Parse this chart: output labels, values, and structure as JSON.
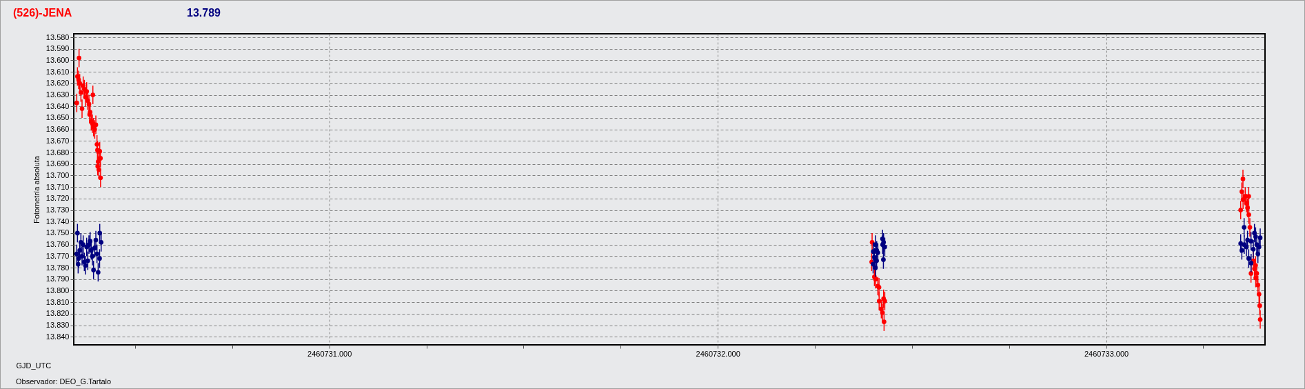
{
  "chart_data": {
    "type": "scatter",
    "title": "(526)-JENA",
    "subtitle": "13.789",
    "xlabel": "GJD_UTC",
    "ylabel": "Fotometría absoluta",
    "annotations": [
      "Observador: DEO_G.Tartalo"
    ],
    "xlim": [
      2460730.342,
      2460733.409
    ],
    "ylim": [
      13.847,
      13.577
    ],
    "xticks": [
      {
        "value": 2460730.5,
        "label": null
      },
      {
        "value": 2460730.75,
        "label": null
      },
      {
        "value": 2460731,
        "label": "2460731.000"
      },
      {
        "value": 2460731.25,
        "label": null
      },
      {
        "value": 2460731.5,
        "label": null
      },
      {
        "value": 2460731.75,
        "label": null
      },
      {
        "value": 2460732,
        "label": "2460732.000"
      },
      {
        "value": 2460732.25,
        "label": null
      },
      {
        "value": 2460732.5,
        "label": null
      },
      {
        "value": 2460732.75,
        "label": null
      },
      {
        "value": 2460733,
        "label": "2460733.000"
      },
      {
        "value": 2460733.25,
        "label": null
      }
    ],
    "yticks": [
      {
        "value": 13.58,
        "label": "13.580"
      },
      {
        "value": 13.59,
        "label": "13.590"
      },
      {
        "value": 13.6,
        "label": "13.600"
      },
      {
        "value": 13.61,
        "label": "13.610"
      },
      {
        "value": 13.62,
        "label": "13.620"
      },
      {
        "value": 13.63,
        "label": "13.630"
      },
      {
        "value": 13.64,
        "label": "13.640"
      },
      {
        "value": 13.65,
        "label": "13.650"
      },
      {
        "value": 13.66,
        "label": "13.660"
      },
      {
        "value": 13.67,
        "label": "13.670"
      },
      {
        "value": 13.68,
        "label": "13.680"
      },
      {
        "value": 13.69,
        "label": "13.690"
      },
      {
        "value": 13.7,
        "label": "13.700"
      },
      {
        "value": 13.71,
        "label": "13.710"
      },
      {
        "value": 13.72,
        "label": "13.720"
      },
      {
        "value": 13.73,
        "label": "13.730"
      },
      {
        "value": 13.74,
        "label": "13.740"
      },
      {
        "value": 13.75,
        "label": "13.750"
      },
      {
        "value": 13.76,
        "label": "13.760"
      },
      {
        "value": 13.77,
        "label": "13.770"
      },
      {
        "value": 13.78,
        "label": "13.780"
      },
      {
        "value": 13.79,
        "label": "13.790"
      },
      {
        "value": 13.8,
        "label": "13.800"
      },
      {
        "value": 13.81,
        "label": "13.810"
      },
      {
        "value": 13.82,
        "label": "13.820"
      },
      {
        "value": 13.83,
        "label": "13.830"
      },
      {
        "value": 13.84,
        "label": "13.840"
      }
    ],
    "grid": true,
    "marker": "circle",
    "series": [
      {
        "color": "#ff0000",
        "x": [
          2460730.3497,
          2460730.3515,
          2460730.3545,
          2460730.3556,
          2460730.3574,
          2460730.3604,
          2460730.3633,
          2460730.3663,
          2460730.3692,
          2460730.3722,
          2460730.3752,
          2460730.3781,
          2460730.3811,
          2460730.3829,
          2460730.3841,
          2460730.387,
          2460730.39,
          2460730.3912,
          2460730.3929,
          2460730.3959,
          2460730.3989,
          2460730.4018,
          2460730.403,
          2460730.4036,
          2460730.4048,
          2460730.4066,
          2460730.4089,
          2460730.4107,
          2460730.411,
          2460732.3974,
          2460732.3963,
          2460732.4034,
          2460732.4063,
          2460732.4122,
          2460732.4152,
          2460732.4155,
          2460732.427,
          2460732.43,
          2460732.4211,
          2460732.4241,
          2460732.4282,
          2460733.3522,
          2460733.3493,
          2460733.3581,
          2460733.367,
          2460733.3525,
          2460733.3611,
          2460733.3463,
          2460733.364,
          2460733.3673,
          2460733.37,
          2460733.3789,
          2460733.3848,
          2460733.3818,
          2460733.3729,
          2460733.3877,
          2460733.3851,
          2460733.3907,
          2460733.3936,
          2460733.3954,
          2460733.3966
        ],
        "values": [
          13.637,
          13.614,
          13.617,
          13.598,
          13.62,
          13.628,
          13.642,
          13.622,
          13.625,
          13.632,
          13.627,
          13.635,
          13.638,
          13.647,
          13.645,
          13.653,
          13.655,
          13.63,
          13.658,
          13.66,
          13.656,
          13.673,
          13.678,
          13.692,
          13.688,
          13.695,
          13.679,
          13.685,
          13.702,
          13.758,
          13.775,
          13.788,
          13.79,
          13.796,
          13.797,
          13.809,
          13.807,
          13.809,
          13.816,
          13.819,
          13.827,
          13.703,
          13.714,
          13.718,
          13.718,
          13.721,
          13.724,
          13.73,
          13.728,
          13.734,
          13.745,
          13.774,
          13.778,
          13.781,
          13.785,
          13.785,
          13.789,
          13.795,
          13.803,
          13.813,
          13.825
        ],
        "errors": [
          0.008,
          0.008,
          0.008,
          0.008,
          0.008,
          0.008,
          0.008,
          0.008,
          0.008,
          0.008,
          0.008,
          0.008,
          0.008,
          0.008,
          0.008,
          0.008,
          0.008,
          0.008,
          0.008,
          0.008,
          0.008,
          0.008,
          0.008,
          0.008,
          0.008,
          0.008,
          0.008,
          0.008,
          0.008,
          0.008,
          0.008,
          0.008,
          0.008,
          0.008,
          0.008,
          0.008,
          0.008,
          0.008,
          0.008,
          0.008,
          0.008,
          0.008,
          0.008,
          0.008,
          0.008,
          0.008,
          0.008,
          0.008,
          0.008,
          0.008,
          0.008,
          0.008,
          0.008,
          0.008,
          0.008,
          0.008,
          0.008,
          0.008,
          0.008,
          0.008,
          0.008
        ]
      },
      {
        "color": "#000080",
        "x": [
          2460730.3515,
          2460730.3497,
          2460730.3545,
          2460730.3533,
          2460730.3574,
          2460730.3604,
          2460730.3633,
          2460730.3663,
          2460730.3692,
          2460730.3722,
          2460730.3752,
          2460730.3781,
          2460730.3811,
          2460730.3841,
          2460730.387,
          2460730.39,
          2460730.3929,
          2460730.3959,
          2460730.3989,
          2460730.4018,
          2460730.4048,
          2460730.4089,
          2460730.4085,
          2460730.4125,
          2460732.4063,
          2460732.4004,
          2460732.4093,
          2460732.4034,
          2460732.4122,
          2460732.4241,
          2460732.427,
          2460732.43,
          2460732.4265,
          2460732.4,
          2460732.409,
          2460732.4245,
          2460732.406,
          2460733.3552,
          2460733.3463,
          2460733.3555,
          2460733.364,
          2460733.3729,
          2460733.3818,
          2460733.3877,
          2460733.3966,
          2460733.3936,
          2460733.3493,
          2460733.367,
          2460733.3732,
          2460733.3907,
          2460733.3789,
          2460733.3611,
          2460733.3848
        ],
        "values": [
          13.75,
          13.768,
          13.772,
          13.777,
          13.765,
          13.758,
          13.77,
          13.76,
          13.775,
          13.778,
          13.762,
          13.774,
          13.76,
          13.757,
          13.765,
          13.77,
          13.782,
          13.763,
          13.756,
          13.768,
          13.784,
          13.75,
          13.772,
          13.758,
          13.76,
          13.766,
          13.765,
          13.771,
          13.767,
          13.755,
          13.758,
          13.762,
          13.773,
          13.777,
          13.774,
          13.76,
          13.78,
          13.745,
          13.759,
          13.76,
          13.756,
          13.757,
          13.75,
          13.76,
          13.754,
          13.762,
          13.765,
          13.772,
          13.776,
          13.768,
          13.764,
          13.762,
          13.753
        ],
        "errors": [
          0.008,
          0.008,
          0.008,
          0.008,
          0.008,
          0.008,
          0.008,
          0.008,
          0.008,
          0.008,
          0.008,
          0.008,
          0.008,
          0.008,
          0.008,
          0.008,
          0.008,
          0.008,
          0.008,
          0.008,
          0.008,
          0.008,
          0.008,
          0.008,
          0.008,
          0.008,
          0.008,
          0.008,
          0.008,
          0.008,
          0.008,
          0.008,
          0.008,
          0.008,
          0.008,
          0.008,
          0.008,
          0.008,
          0.008,
          0.008,
          0.008,
          0.008,
          0.008,
          0.008,
          0.008,
          0.008,
          0.008,
          0.008,
          0.008,
          0.008,
          0.008,
          0.008,
          0.008
        ]
      }
    ]
  }
}
